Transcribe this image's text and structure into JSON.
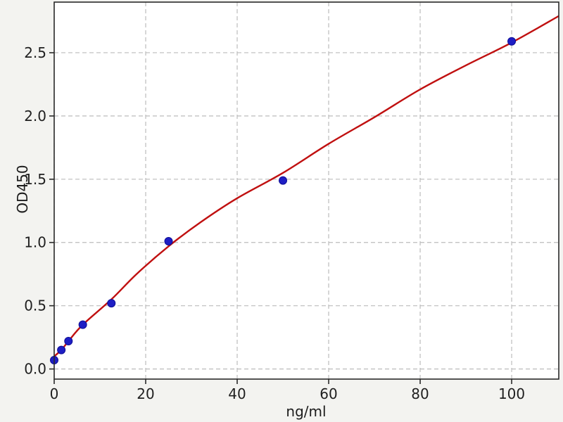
{
  "page": {
    "background": "#f3f3f0"
  },
  "chart_data": {
    "type": "scatter",
    "title": "",
    "xlabel": "ng/ml",
    "ylabel": "OD450",
    "xlim": [
      0,
      110.3
    ],
    "ylim": [
      -0.08,
      2.9
    ],
    "xticks": [
      0,
      20,
      40,
      60,
      80,
      100
    ],
    "xtick_labels": [
      "0",
      "20",
      "40",
      "60",
      "80",
      "100"
    ],
    "yticks": [
      0,
      0.5,
      1,
      1.5,
      2,
      2.5
    ],
    "ytick_labels": [
      "0.0",
      "0.5",
      "1.0",
      "1.5",
      "2.0",
      "2.5"
    ],
    "grid": true,
    "legend_position": "none",
    "series": [
      {
        "name": "standard-points",
        "type": "scatter",
        "color": "#1e1ec4",
        "edge_color": "#0e0e96",
        "x": [
          0,
          1.56,
          3.12,
          6.25,
          12.5,
          25,
          50,
          100
        ],
        "y": [
          0.07,
          0.15,
          0.22,
          0.35,
          0.52,
          1.01,
          1.49,
          2.59
        ]
      },
      {
        "name": "fitted-curve",
        "type": "line",
        "color": "#c01010",
        "x": [
          0,
          1.56,
          3.12,
          6.25,
          12.5,
          18,
          25,
          32,
          40,
          50,
          60,
          70,
          80,
          90,
          100,
          110.3
        ],
        "y": [
          0.1,
          0.15,
          0.22,
          0.35,
          0.55,
          0.75,
          0.97,
          1.16,
          1.35,
          1.55,
          1.78,
          1.99,
          2.21,
          2.4,
          2.58,
          2.79
        ]
      }
    ],
    "colors": {
      "figure_background": "#f3f3f0",
      "plot_background": "#ffffff",
      "grid_color": "#bcbcbc",
      "spine_color": "#2a2a2a",
      "tick_label_color": "#1f1f1f"
    }
  }
}
